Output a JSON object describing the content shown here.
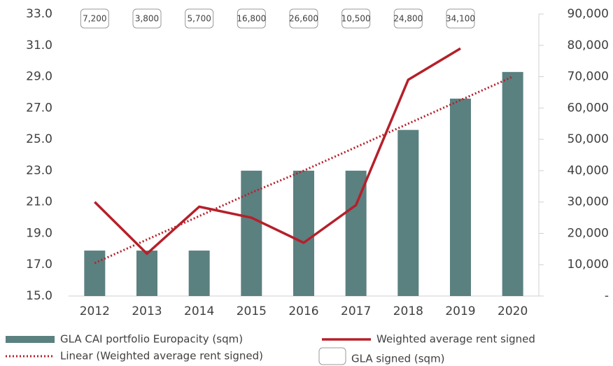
{
  "chart_data": {
    "type": "bar",
    "categories": [
      "2012",
      "2013",
      "2014",
      "2015",
      "2016",
      "2017",
      "2018",
      "2019",
      "2020"
    ],
    "series": [
      {
        "name": "GLA CAI portfolio Europacity (sqm)",
        "type": "bar",
        "axis": "y2",
        "color": "#5b8080",
        "values": [
          14500,
          14500,
          14500,
          40000,
          40000,
          40000,
          53000,
          63000,
          71500
        ]
      },
      {
        "name": "Weighted average rent signed",
        "type": "line",
        "color": "#b5202a",
        "values": [
          21.0,
          17.7,
          20.7,
          20.0,
          18.4,
          20.8,
          28.8,
          30.8,
          null
        ]
      },
      {
        "name": "Linear (Weighted average rent signed)",
        "type": "dotted",
        "color": "#b5202a",
        "values": [
          17.1,
          18.6,
          20.1,
          21.6,
          23.0,
          24.5,
          26.0,
          27.5,
          29.0
        ]
      },
      {
        "name": "GLA signed (sqm)",
        "type": "boxlabel",
        "axis": "y2",
        "color": "#999999",
        "values": [
          7200,
          3800,
          5700,
          16800,
          26600,
          10500,
          24800,
          34100,
          null
        ],
        "value_labels": [
          "7,200",
          "3,800",
          "5,700",
          "16,800",
          "26,600",
          "10,500",
          "24,800",
          "34,100",
          null
        ]
      }
    ],
    "ylim": [
      15,
      33
    ],
    "yticks": [
      {
        "value": 15,
        "label": "15.0"
      },
      {
        "value": 17,
        "label": "17.0"
      },
      {
        "value": 19,
        "label": "19.0"
      },
      {
        "value": 21,
        "label": "21.0"
      },
      {
        "value": 23,
        "label": "23.0"
      },
      {
        "value": 25,
        "label": "25.0"
      },
      {
        "value": 27,
        "label": "27.0"
      },
      {
        "value": 29,
        "label": "29.0"
      },
      {
        "value": 31,
        "label": "31.0"
      },
      {
        "value": 33,
        "label": "33.0"
      }
    ],
    "y2lim": [
      0,
      90000
    ],
    "y2ticks": [
      {
        "value": 0,
        "label": "-"
      },
      {
        "value": 10000,
        "label": "10,000"
      },
      {
        "value": 20000,
        "label": "20,000"
      },
      {
        "value": 30000,
        "label": "30,000"
      },
      {
        "value": 40000,
        "label": "40,000"
      },
      {
        "value": 50000,
        "label": "50,000"
      },
      {
        "value": 60000,
        "label": "60,000"
      },
      {
        "value": 70000,
        "label": "70,000"
      },
      {
        "value": 80000,
        "label": "80,000"
      },
      {
        "value": 90000,
        "label": "90,000"
      }
    ]
  }
}
